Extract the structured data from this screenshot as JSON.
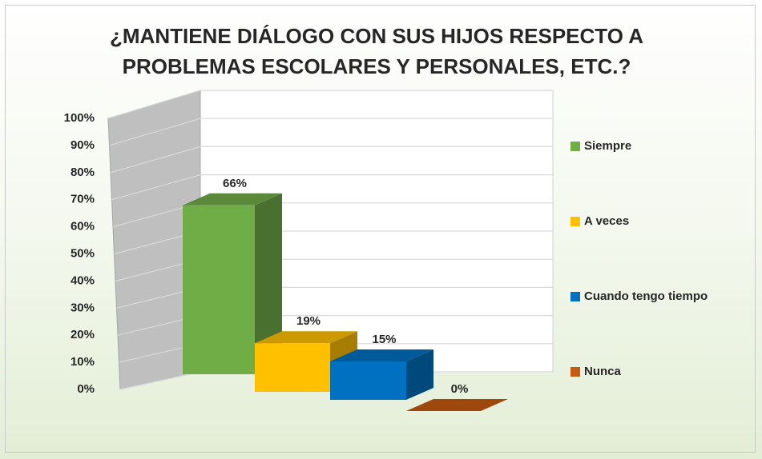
{
  "chart_data": {
    "type": "bar3d",
    "title": "¿MANTIENE DIÁLOGO CON SUS HIJOS RESPECTO A PROBLEMAS ESCOLARES Y PERSONALES, ETC.?",
    "categories": [
      "Siempre",
      "A veces",
      "Cuando tengo tiempo",
      "Nunca"
    ],
    "values": [
      66,
      19,
      15,
      0
    ],
    "value_labels": [
      "66%",
      "19%",
      "15%",
      "0%"
    ],
    "colors": [
      "#70ad47",
      "#ffc000",
      "#0070c0",
      "#c55a11"
    ],
    "ylim": [
      0,
      100
    ],
    "yticks": [
      {
        "value": 0,
        "label": "0%"
      },
      {
        "value": 10,
        "label": "10%"
      },
      {
        "value": 20,
        "label": "20%"
      },
      {
        "value": 30,
        "label": "30%"
      },
      {
        "value": 40,
        "label": "40%"
      },
      {
        "value": 50,
        "label": "50%"
      },
      {
        "value": 60,
        "label": "60%"
      },
      {
        "value": 70,
        "label": "70%"
      },
      {
        "value": 80,
        "label": "80%"
      },
      {
        "value": 90,
        "label": "90%"
      },
      {
        "value": 100,
        "label": "100%"
      }
    ],
    "grid": true,
    "legend": "right"
  }
}
